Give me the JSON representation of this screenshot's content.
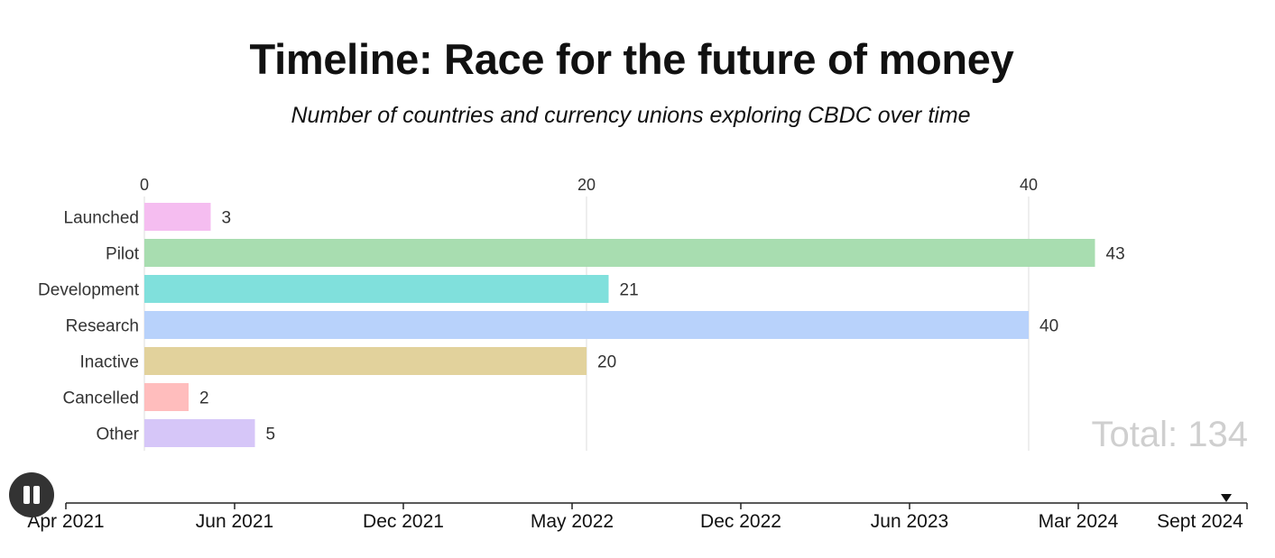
{
  "header": {
    "title": "Timeline: Race for the future of money",
    "subtitle": "Number of countries and currency unions exploring CBDC over time"
  },
  "chart_data": {
    "type": "bar",
    "orientation": "horizontal",
    "categories": [
      "Launched",
      "Pilot",
      "Development",
      "Research",
      "Inactive",
      "Cancelled",
      "Other"
    ],
    "values": [
      3,
      43,
      21,
      40,
      20,
      2,
      5
    ],
    "colors": [
      "#f5bdf0",
      "#a8ddb0",
      "#80e0dc",
      "#b8d2fb",
      "#e2d29c",
      "#ffbdbd",
      "#d6c6f8"
    ],
    "xticks": [
      0,
      20,
      40
    ],
    "xlim": [
      0,
      50
    ],
    "grid": true,
    "axis_position": "top",
    "total_label": "Total: 134"
  },
  "timeline": {
    "labels": [
      "Apr 2021",
      "Jun 2021",
      "Dec 2021",
      "May 2022",
      "Dec 2022",
      "Jun 2023",
      "Mar 2024",
      "Sept 2024"
    ],
    "current": "Sept 2024",
    "state": "playing"
  },
  "icons": {
    "pause": "pause-icon",
    "marker": "triangle-down-icon"
  }
}
